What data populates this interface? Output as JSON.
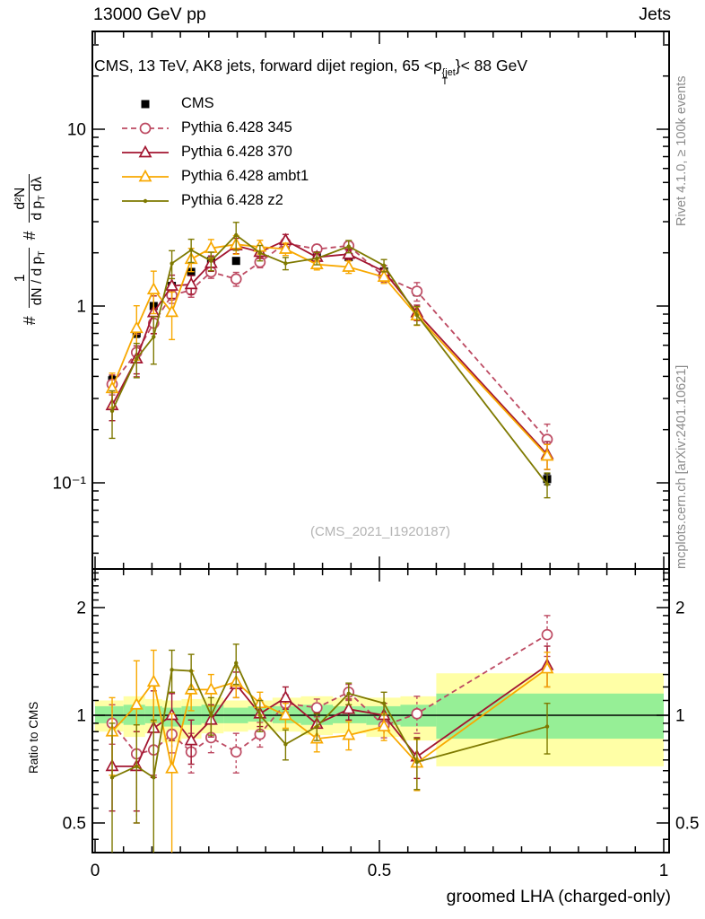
{
  "texts": {
    "header_left": "13000 GeV pp",
    "header_right": "Jets",
    "title": {
      "pre": "CMS, 13 TeV, AK8 jets, forward dijet region, 65 <p",
      "sup": "{jet",
      "sub": "T",
      "post": "}< 88 GeV"
    },
    "watermark": "(CMS_2021_I1920187)",
    "rivet": "Rivet 4.1.0, ≥ 100k events",
    "mcplots": "mcplots.cern.ch [arXiv:2401.10621]",
    "ratio_ylabel": "Ratio to CMS",
    "xlabel": "groomed LHA (charged-only)",
    "ylabel": {
      "hash1": "#",
      "num1": "1",
      "den1": "dN / d p",
      "den1sub": "T",
      "hash2": "#",
      "num2": "d²N",
      "den2a": "d p",
      "den2sub": "T",
      "den2b": " dλ"
    }
  },
  "chart_data": {
    "type": "line",
    "title": "CMS, 13 TeV, AK8 jets, forward dijet region, 65 < pT^jet < 88 GeV",
    "xlabel": "groomed LHA (charged-only)",
    "ylabel": "# 1/(dN/dpT) # d2N/(dpT dlambda)",
    "ratio_ylabel": "Ratio to CMS",
    "xlim": [
      0,
      1
    ],
    "main_ylog": true,
    "main_ylim": [
      0.0325,
      35.8
    ],
    "ratio_ylog": true,
    "ratio_ylim": [
      0.413,
      2.56
    ],
    "grid": false,
    "legend_position": "upper-left",
    "xticks_major": [
      {
        "v": 0,
        "label": "0"
      },
      {
        "v": 0.5,
        "label": "0.5"
      },
      {
        "v": 1,
        "label": "1"
      }
    ],
    "xtick_minor_step": 0.05,
    "main_yticks_major": [
      {
        "v": 10,
        "label": "10"
      },
      {
        "v": 1,
        "label": "1"
      },
      {
        "v": 0.1,
        "label": "10⁻¹"
      }
    ],
    "main_yticks_minor": [
      0.04,
      0.05,
      0.06,
      0.07,
      0.08,
      0.09,
      0.2,
      0.3,
      0.4,
      0.5,
      0.6,
      0.7,
      0.8,
      0.9,
      2,
      3,
      4,
      5,
      6,
      7,
      8,
      9,
      20,
      30
    ],
    "ratio_yticks_major": [
      {
        "v": 2,
        "label": "2"
      },
      {
        "v": 1,
        "label": "1"
      },
      {
        "v": 0.5,
        "label": "0.5"
      }
    ],
    "ratio_yticks_minor": [
      0.45,
      0.55,
      0.6,
      0.65,
      0.7,
      0.75,
      0.8,
      0.85,
      0.9,
      0.95,
      1.1,
      1.2,
      1.3,
      1.4,
      1.5,
      1.6,
      1.7,
      1.8,
      1.9,
      2.1,
      2.2,
      2.3,
      2.4,
      2.5
    ],
    "x": [
      0.03,
      0.073,
      0.103,
      0.135,
      0.169,
      0.204,
      0.248,
      0.29,
      0.335,
      0.39,
      0.446,
      0.508,
      0.566,
      0.795
    ],
    "bands": {
      "yellow_color": "#ffffa6",
      "green_color": "#96ef96",
      "segments": [
        {
          "x0": 0.0,
          "x1": 0.05,
          "yellow": [
            0.9,
            1.1
          ],
          "green": [
            0.95,
            1.06
          ]
        },
        {
          "x0": 0.05,
          "x1": 0.088,
          "yellow": [
            0.87,
            1.13
          ],
          "green": [
            0.94,
            1.07
          ]
        },
        {
          "x0": 0.088,
          "x1": 0.118,
          "yellow": [
            0.89,
            1.11
          ],
          "green": [
            0.95,
            1.06
          ]
        },
        {
          "x0": 0.118,
          "x1": 0.152,
          "yellow": [
            0.84,
            1.1
          ],
          "green": [
            0.93,
            1.05
          ]
        },
        {
          "x0": 0.152,
          "x1": 0.187,
          "yellow": [
            0.86,
            1.11
          ],
          "green": [
            0.94,
            1.06
          ]
        },
        {
          "x0": 0.187,
          "x1": 0.226,
          "yellow": [
            0.89,
            1.12
          ],
          "green": [
            0.95,
            1.07
          ]
        },
        {
          "x0": 0.226,
          "x1": 0.269,
          "yellow": [
            0.9,
            1.1
          ],
          "green": [
            0.95,
            1.05
          ]
        },
        {
          "x0": 0.269,
          "x1": 0.312,
          "yellow": [
            0.91,
            1.1
          ],
          "green": [
            0.96,
            1.06
          ]
        },
        {
          "x0": 0.312,
          "x1": 0.362,
          "yellow": [
            0.9,
            1.12
          ],
          "green": [
            0.95,
            1.06
          ]
        },
        {
          "x0": 0.362,
          "x1": 0.418,
          "yellow": [
            0.88,
            1.13
          ],
          "green": [
            0.94,
            1.07
          ]
        },
        {
          "x0": 0.418,
          "x1": 0.477,
          "yellow": [
            0.89,
            1.12
          ],
          "green": [
            0.95,
            1.06
          ]
        },
        {
          "x0": 0.477,
          "x1": 0.537,
          "yellow": [
            0.87,
            1.12
          ],
          "green": [
            0.94,
            1.06
          ]
        },
        {
          "x0": 0.537,
          "x1": 0.6,
          "yellow": [
            0.85,
            1.13
          ],
          "green": [
            0.93,
            1.07
          ]
        },
        {
          "x0": 0.6,
          "x1": 1.0,
          "yellow": [
            0.72,
            1.31
          ],
          "green": [
            0.86,
            1.15
          ]
        }
      ]
    },
    "series": [
      {
        "label": "CMS",
        "type": "data",
        "color": "#000000",
        "marker": "square-filled",
        "line": "none",
        "values": [
          0.38,
          0.7,
          1.0,
          1.3,
          1.56,
          1.8,
          1.8,
          2.0,
          2.1,
          2.0,
          1.89,
          1.57,
          1.2,
          0.105
        ],
        "err_rel": [
          0.06,
          0.05,
          0.04,
          0.04,
          0.035,
          0.035,
          0.035,
          0.03,
          0.03,
          0.03,
          0.035,
          0.04,
          0.05,
          0.07
        ]
      },
      {
        "label": "Pythia 6.428 345",
        "type": "mc",
        "color": "#bd4a62",
        "marker": "circle-open",
        "line": "dashed",
        "values": [
          0.361,
          0.546,
          0.8,
          1.151,
          1.232,
          1.559,
          1.422,
          1.77,
          2.268,
          2.1,
          2.192,
          1.468,
          1.212,
          0.176
        ],
        "err_rel": [
          0.13,
          0.27,
          0.13,
          0.1,
          0.09,
          0.08,
          0.09,
          0.07,
          0.06,
          0.06,
          0.06,
          0.07,
          0.12,
          0.22
        ],
        "ratio": [
          0.95,
          0.78,
          0.8,
          0.885,
          0.79,
          0.866,
          0.79,
          0.885,
          1.08,
          1.05,
          1.16,
          0.935,
          1.01,
          1.68
        ],
        "ratio_err": [
          0.12,
          0.28,
          0.12,
          0.1,
          0.1,
          0.08,
          0.1,
          0.07,
          0.06,
          0.06,
          0.06,
          0.07,
          0.12,
          0.22
        ]
      },
      {
        "label": "Pythia 6.428 370",
        "type": "mc",
        "color": "#a21530",
        "marker": "triangle-open",
        "line": "solid",
        "values": [
          0.274,
          0.504,
          0.92,
          1.3,
          1.326,
          1.746,
          2.196,
          2.02,
          2.352,
          1.89,
          1.966,
          1.57,
          0.919,
          0.145
        ],
        "err_rel": [
          0.18,
          0.18,
          0.24,
          0.15,
          0.12,
          0.1,
          0.1,
          0.08,
          0.08,
          0.07,
          0.07,
          0.08,
          0.1,
          0.18
        ],
        "ratio": [
          0.72,
          0.72,
          0.92,
          1.0,
          0.85,
          0.97,
          1.22,
          1.01,
          1.12,
          0.945,
          1.04,
          1.0,
          0.766,
          1.38
        ],
        "ratio_err": [
          0.18,
          0.18,
          0.25,
          0.15,
          0.12,
          0.1,
          0.1,
          0.08,
          0.08,
          0.07,
          0.07,
          0.08,
          0.1,
          0.18
        ]
      },
      {
        "label": "Pythia 6.428 ambt1",
        "type": "mc",
        "color": "#f8a800",
        "marker": "triangle-open",
        "line": "solid",
        "values": [
          0.342,
          0.749,
          1.24,
          0.923,
          1.841,
          2.124,
          2.232,
          2.16,
          2.1,
          1.72,
          1.663,
          1.46,
          0.883,
          0.142
        ],
        "err_rel": [
          0.22,
          0.34,
          0.27,
          0.3,
          0.15,
          0.12,
          0.12,
          0.09,
          0.08,
          0.07,
          0.08,
          0.08,
          0.12,
          0.16
        ],
        "ratio": [
          0.9,
          1.07,
          1.24,
          0.71,
          1.18,
          1.18,
          1.24,
          1.08,
          1.0,
          0.86,
          0.88,
          0.93,
          0.736,
          1.35
        ],
        "ratio_err": [
          0.22,
          0.35,
          0.28,
          0.3,
          0.15,
          0.12,
          0.12,
          0.08,
          0.08,
          0.07,
          0.08,
          0.08,
          0.12,
          0.15
        ]
      },
      {
        "label": "Pythia 6.428 z2",
        "type": "mc",
        "color": "#7e7900",
        "marker": "dot",
        "line": "solid",
        "values": [
          0.255,
          0.504,
          0.67,
          1.742,
          2.075,
          1.8,
          2.52,
          2.0,
          1.743,
          1.86,
          2.174,
          1.696,
          0.888,
          0.098
        ],
        "err_rel": [
          0.3,
          0.22,
          0.3,
          0.18,
          0.15,
          0.12,
          0.18,
          0.1,
          0.08,
          0.08,
          0.08,
          0.08,
          0.12,
          0.16
        ],
        "ratio": [
          0.67,
          0.72,
          0.67,
          1.34,
          1.33,
          1.0,
          1.4,
          1.0,
          0.83,
          0.93,
          1.15,
          1.08,
          0.74,
          0.93
        ],
        "ratio_err": [
          0.28,
          0.22,
          0.3,
          0.18,
          0.15,
          0.12,
          0.18,
          0.1,
          0.08,
          0.08,
          0.08,
          0.08,
          0.12,
          0.15
        ]
      }
    ]
  }
}
